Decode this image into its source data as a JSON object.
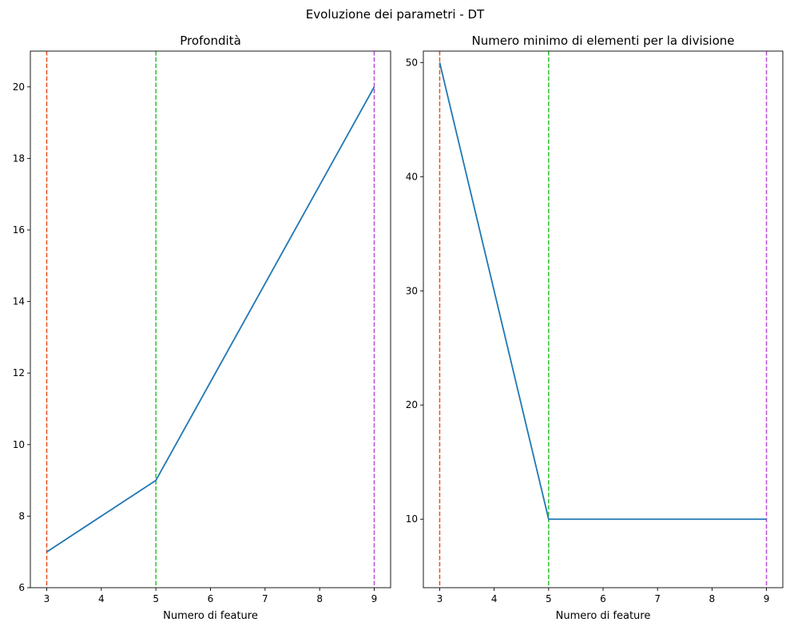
{
  "figure": {
    "suptitle": "Evoluzione dei parametri - DT"
  },
  "chart_data": [
    {
      "type": "line",
      "title": "Profondità",
      "xlabel": "Numero di feature",
      "ylabel": "",
      "x": [
        3,
        5,
        9
      ],
      "y": [
        7,
        9,
        20
      ],
      "xlim": [
        2.7,
        9.3
      ],
      "ylim": [
        6,
        21
      ],
      "xticks": [
        3,
        4,
        5,
        6,
        7,
        8,
        9
      ],
      "yticks": [
        6,
        8,
        10,
        12,
        14,
        16,
        18,
        20
      ],
      "line_color": "#1f77b4",
      "vlines": [
        {
          "x": 3,
          "color": "#e8501e",
          "style": "dashed"
        },
        {
          "x": 5,
          "color": "#2bc22b",
          "style": "dashed"
        },
        {
          "x": 9,
          "color": "#b84fd6",
          "style": "dashed"
        }
      ],
      "grid": false
    },
    {
      "type": "line",
      "title": "Numero minimo di elementi per la divisione",
      "xlabel": "Numero di feature",
      "ylabel": "",
      "x": [
        3,
        5,
        9
      ],
      "y": [
        50,
        10,
        10
      ],
      "xlim": [
        2.7,
        9.3
      ],
      "ylim": [
        4,
        51
      ],
      "xticks": [
        3,
        4,
        5,
        6,
        7,
        8,
        9
      ],
      "yticks": [
        10,
        20,
        30,
        40,
        50
      ],
      "line_color": "#1f77b4",
      "vlines": [
        {
          "x": 3,
          "color": "#e8501e",
          "style": "dashed"
        },
        {
          "x": 5,
          "color": "#2bc22b",
          "style": "dashed"
        },
        {
          "x": 9,
          "color": "#b84fd6",
          "style": "dashed"
        }
      ],
      "grid": false
    }
  ]
}
